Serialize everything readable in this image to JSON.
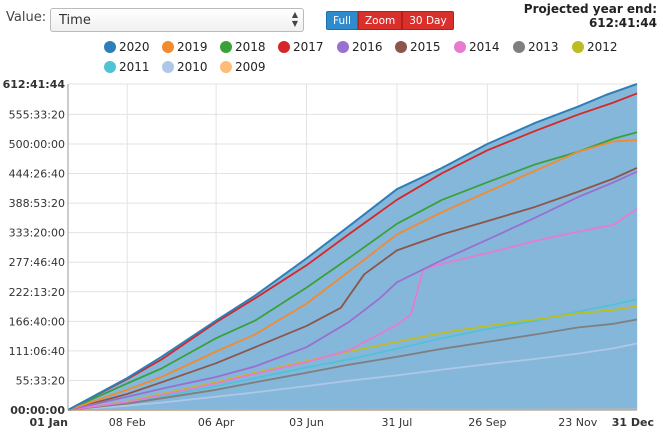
{
  "controls": {
    "value_label": "Value:",
    "value_selected": "Time",
    "buttons": {
      "full": "Full",
      "zoom": "Zoom",
      "day30": "30 Day"
    }
  },
  "projected": {
    "line1": "Projected year end:",
    "line2": "612:41:44"
  },
  "colors": {
    "2020": "#2e7fb8",
    "2019": "#f28a2e",
    "2018": "#3aa13a",
    "2017": "#d62728",
    "2016": "#9a6fcf",
    "2015": "#8c564b",
    "2014": "#e67ccf",
    "2013": "#7f7f7f",
    "2012": "#bcbd22",
    "2011": "#4fc3d6",
    "2010": "#aec7e8",
    "2009": "#ffbb78",
    "area_fill": "#7eb3d9"
  },
  "chart_data": {
    "type": "line",
    "x_labels": [
      "01 Jan",
      "08 Feb",
      "06 Apr",
      "03 Jun",
      "31 Jul",
      "26 Sep",
      "23 Nov",
      "31 Dec"
    ],
    "x_tick_days": [
      0,
      38,
      95,
      153,
      211,
      269,
      327,
      365
    ],
    "y_labels": [
      "00:00:00",
      "55:33:20",
      "111:06:40",
      "166:40:00",
      "222:13:20",
      "277:46:40",
      "333:20:00",
      "388:53:20",
      "444:26:40",
      "500:00:00",
      "555:33:20",
      "612:41:44"
    ],
    "y_tick_hours": [
      0,
      55.56,
      111.11,
      166.67,
      222.22,
      277.78,
      333.33,
      388.89,
      444.44,
      500,
      555.56,
      612.7
    ],
    "xlim_days": [
      0,
      365
    ],
    "ylim_hours": [
      0,
      612.7
    ],
    "grid": true,
    "legend_position": "top",
    "series": [
      {
        "name": "2020",
        "area": true,
        "points": [
          [
            0,
            0
          ],
          [
            38,
            60
          ],
          [
            60,
            100
          ],
          [
            95,
            168
          ],
          [
            120,
            215
          ],
          [
            153,
            285
          ],
          [
            180,
            345
          ],
          [
            211,
            415
          ],
          [
            240,
            455
          ],
          [
            269,
            500
          ],
          [
            300,
            540
          ],
          [
            327,
            570
          ],
          [
            345,
            592
          ],
          [
            365,
            612.7
          ]
        ]
      },
      {
        "name": "2019",
        "points": [
          [
            0,
            0
          ],
          [
            38,
            38
          ],
          [
            60,
            62
          ],
          [
            95,
            110
          ],
          [
            120,
            142
          ],
          [
            153,
            200
          ],
          [
            180,
            260
          ],
          [
            200,
            305
          ],
          [
            211,
            330
          ],
          [
            240,
            372
          ],
          [
            269,
            410
          ],
          [
            300,
            450
          ],
          [
            327,
            485
          ],
          [
            350,
            505
          ],
          [
            365,
            507
          ]
        ]
      },
      {
        "name": "2018",
        "points": [
          [
            0,
            0
          ],
          [
            38,
            50
          ],
          [
            60,
            78
          ],
          [
            95,
            135
          ],
          [
            120,
            168
          ],
          [
            153,
            230
          ],
          [
            180,
            285
          ],
          [
            211,
            350
          ],
          [
            240,
            395
          ],
          [
            269,
            428
          ],
          [
            300,
            462
          ],
          [
            327,
            485
          ],
          [
            350,
            510
          ],
          [
            365,
            522
          ]
        ]
      },
      {
        "name": "2017",
        "points": [
          [
            0,
            0
          ],
          [
            38,
            58
          ],
          [
            60,
            95
          ],
          [
            95,
            165
          ],
          [
            120,
            210
          ],
          [
            153,
            272
          ],
          [
            180,
            330
          ],
          [
            211,
            395
          ],
          [
            240,
            445
          ],
          [
            269,
            488
          ],
          [
            300,
            525
          ],
          [
            327,
            555
          ],
          [
            350,
            578
          ],
          [
            365,
            595
          ]
        ]
      },
      {
        "name": "2016",
        "points": [
          [
            0,
            0
          ],
          [
            38,
            25
          ],
          [
            60,
            40
          ],
          [
            95,
            62
          ],
          [
            120,
            82
          ],
          [
            153,
            118
          ],
          [
            180,
            165
          ],
          [
            200,
            210
          ],
          [
            211,
            240
          ],
          [
            240,
            282
          ],
          [
            269,
            320
          ],
          [
            300,
            362
          ],
          [
            327,
            400
          ],
          [
            350,
            428
          ],
          [
            365,
            448
          ]
        ]
      },
      {
        "name": "2015",
        "points": [
          [
            0,
            0
          ],
          [
            38,
            30
          ],
          [
            60,
            52
          ],
          [
            95,
            88
          ],
          [
            120,
            118
          ],
          [
            153,
            158
          ],
          [
            175,
            192
          ],
          [
            190,
            255
          ],
          [
            211,
            300
          ],
          [
            240,
            330
          ],
          [
            269,
            355
          ],
          [
            300,
            382
          ],
          [
            327,
            410
          ],
          [
            350,
            435
          ],
          [
            365,
            455
          ]
        ]
      },
      {
        "name": "2014",
        "points": [
          [
            0,
            0
          ],
          [
            38,
            15
          ],
          [
            60,
            28
          ],
          [
            95,
            50
          ],
          [
            120,
            68
          ],
          [
            153,
            90
          ],
          [
            180,
            112
          ],
          [
            211,
            160
          ],
          [
            220,
            180
          ],
          [
            228,
            265
          ],
          [
            240,
            275
          ],
          [
            269,
            295
          ],
          [
            300,
            318
          ],
          [
            327,
            335
          ],
          [
            350,
            348
          ],
          [
            365,
            378
          ]
        ]
      },
      {
        "name": "2013",
        "points": [
          [
            0,
            0
          ],
          [
            38,
            12
          ],
          [
            60,
            22
          ],
          [
            95,
            38
          ],
          [
            120,
            52
          ],
          [
            153,
            70
          ],
          [
            180,
            85
          ],
          [
            211,
            100
          ],
          [
            240,
            115
          ],
          [
            269,
            128
          ],
          [
            300,
            142
          ],
          [
            327,
            155
          ],
          [
            350,
            162
          ],
          [
            365,
            170
          ]
        ]
      },
      {
        "name": "2012",
        "points": [
          [
            0,
            0
          ],
          [
            38,
            16
          ],
          [
            60,
            30
          ],
          [
            95,
            52
          ],
          [
            120,
            70
          ],
          [
            153,
            92
          ],
          [
            180,
            110
          ],
          [
            211,
            128
          ],
          [
            240,
            145
          ],
          [
            269,
            158
          ],
          [
            300,
            170
          ],
          [
            327,
            182
          ],
          [
            350,
            188
          ],
          [
            365,
            195
          ]
        ]
      },
      {
        "name": "2011",
        "points": [
          [
            0,
            0
          ],
          [
            38,
            14
          ],
          [
            60,
            25
          ],
          [
            95,
            45
          ],
          [
            120,
            60
          ],
          [
            153,
            80
          ],
          [
            180,
            95
          ],
          [
            211,
            115
          ],
          [
            240,
            135
          ],
          [
            269,
            152
          ],
          [
            300,
            168
          ],
          [
            327,
            185
          ],
          [
            350,
            198
          ],
          [
            365,
            208
          ]
        ]
      },
      {
        "name": "2010",
        "points": [
          [
            0,
            0
          ],
          [
            38,
            8
          ],
          [
            60,
            14
          ],
          [
            95,
            25
          ],
          [
            120,
            33
          ],
          [
            153,
            45
          ],
          [
            180,
            55
          ],
          [
            211,
            65
          ],
          [
            240,
            76
          ],
          [
            269,
            86
          ],
          [
            300,
            96
          ],
          [
            327,
            106
          ],
          [
            350,
            116
          ],
          [
            365,
            125
          ]
        ]
      },
      {
        "name": "2009",
        "points": [
          [
            0,
            0
          ],
          [
            365,
            0.5
          ]
        ]
      }
    ]
  }
}
